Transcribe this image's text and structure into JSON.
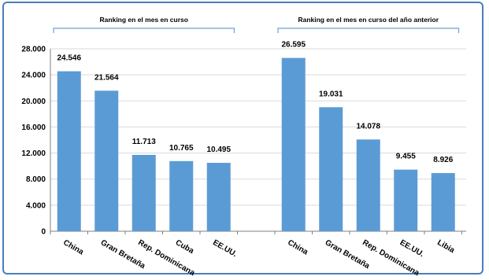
{
  "chart_data": {
    "type": "bar",
    "colors": {
      "bar": "#5b9bd5",
      "frame": "#4a7ebb",
      "bracket": "#6f9fd8",
      "grid": "#d9d9d9"
    },
    "ylim": [
      0,
      28000
    ],
    "grid": true,
    "yticks": [
      "0",
      "4.000",
      "8.000",
      "12.000",
      "16.000",
      "20.000",
      "24.000",
      "28.000"
    ],
    "ytick_values": [
      0,
      4000,
      8000,
      12000,
      16000,
      20000,
      24000,
      28000
    ],
    "groups": [
      {
        "label": "Ranking en el mes en curso",
        "categories": [
          "China",
          "Gran Bretaña",
          "Rep. Dominicana",
          "Cuba",
          "EE.UU."
        ],
        "values": [
          24546,
          21564,
          11713,
          10765,
          10495
        ],
        "value_labels": [
          "24.546",
          "21.564",
          "11.713",
          "10.765",
          "10.495"
        ]
      },
      {
        "label": "Ranking en el mes en curso del año anterior",
        "categories": [
          "China",
          "Gran Bretaña",
          "Rep. Dominicana",
          "EE.UU.",
          "Libia"
        ],
        "values": [
          26595,
          19031,
          14078,
          9455,
          8926
        ],
        "value_labels": [
          "26.595",
          "19.031",
          "14.078",
          "9.455",
          "8.926"
        ]
      }
    ]
  }
}
